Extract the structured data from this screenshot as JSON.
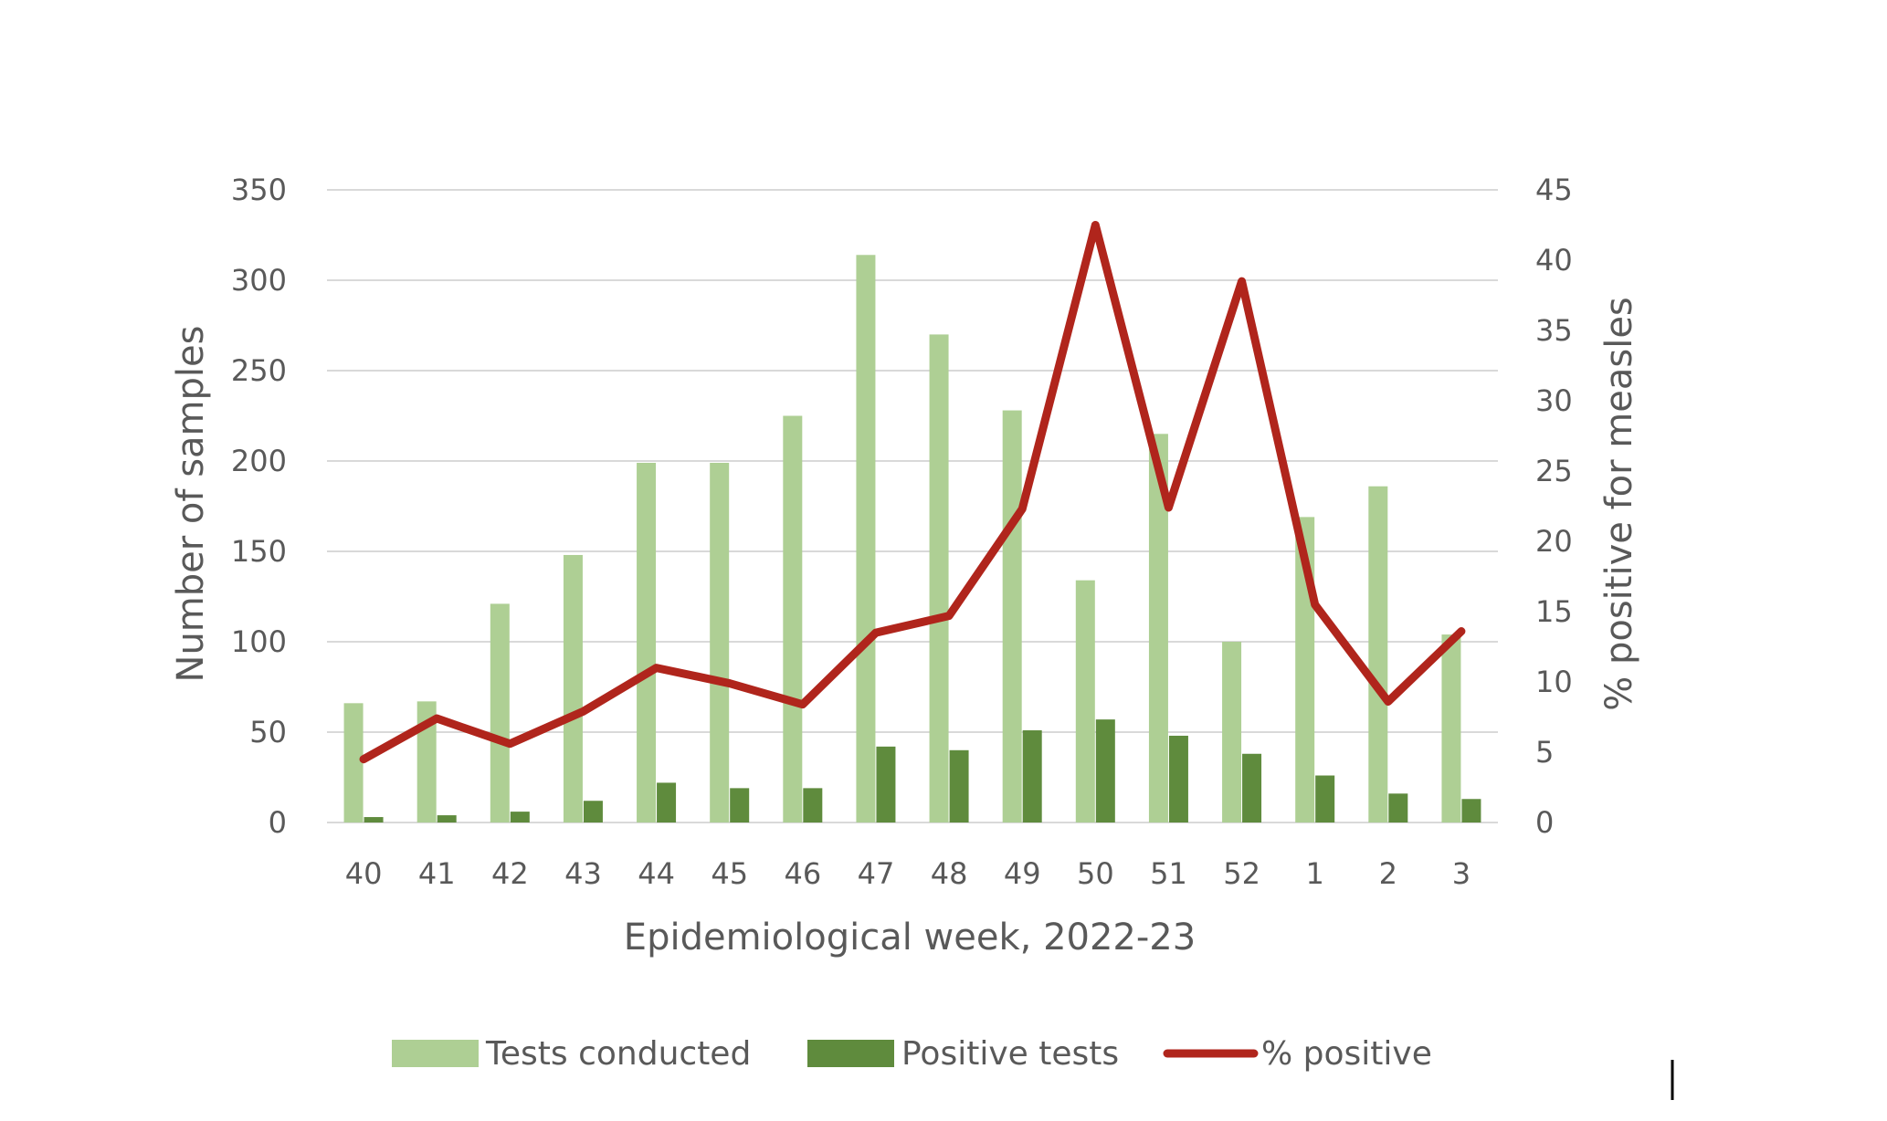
{
  "chart_data": {
    "type": "bar",
    "categories": [
      "40",
      "41",
      "42",
      "43",
      "44",
      "45",
      "46",
      "47",
      "48",
      "49",
      "50",
      "51",
      "52",
      "1",
      "2",
      "3"
    ],
    "series": [
      {
        "name": "Tests conducted",
        "type": "bar",
        "axis": "left",
        "color": "#aecf94",
        "values": [
          66,
          67,
          121,
          148,
          199,
          199,
          225,
          314,
          270,
          228,
          134,
          215,
          100,
          169,
          186,
          104
        ]
      },
      {
        "name": "Positive tests",
        "type": "bar",
        "axis": "left",
        "color": "#5f8b3d",
        "values": [
          3,
          4,
          6,
          12,
          22,
          19,
          19,
          42,
          40,
          51,
          57,
          48,
          38,
          26,
          16,
          13
        ]
      },
      {
        "name": "% positive",
        "type": "line",
        "axis": "right",
        "color": "#b0251c",
        "values": [
          4.5,
          7.4,
          5.6,
          7.9,
          11.0,
          9.9,
          8.4,
          13.5,
          14.7,
          22.3,
          42.5,
          22.4,
          38.5,
          15.5,
          8.6,
          13.6
        ]
      }
    ],
    "xlabel": "Epidemiological week, 2022-23",
    "ylabel": "Number of samples",
    "y2label": "% positive for measles",
    "ylim": [
      0,
      350
    ],
    "y2lim": [
      0,
      45
    ],
    "yticks": [
      "0",
      "50",
      "100",
      "150",
      "200",
      "250",
      "300",
      "350"
    ],
    "y2ticks": [
      "0",
      "5",
      "10",
      "15",
      "20",
      "25",
      "30",
      "35",
      "40",
      "45"
    ],
    "grid": true,
    "legend_position": "bottom"
  }
}
